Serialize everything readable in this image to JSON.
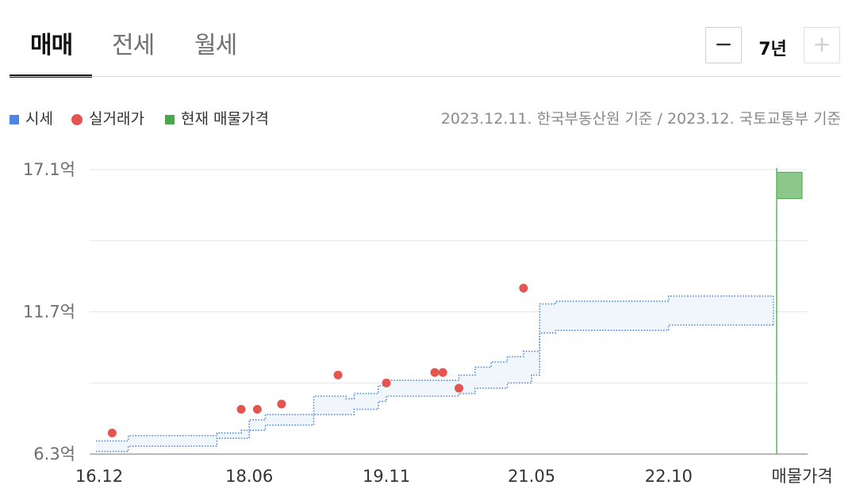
{
  "tabs": [
    {
      "label": "매매",
      "active": true
    },
    {
      "label": "전세",
      "active": false
    },
    {
      "label": "월세",
      "active": false
    }
  ],
  "period": {
    "minus": "−",
    "value": "7년",
    "plus": "+"
  },
  "legend": {
    "items": [
      {
        "label": "시세",
        "color": "#4c86e0",
        "shape": "square"
      },
      {
        "label": "실거래가",
        "color": "#e5554f",
        "shape": "circle"
      },
      {
        "label": "현재 매물가격",
        "color": "#4aa84a",
        "shape": "square"
      }
    ],
    "source": "2023.12.11. 한국부동산원 기준 / 2023.12. 국토교통부 기준"
  },
  "chart_data": {
    "type": "line",
    "unit": "억",
    "ylim": [
      6.3,
      17.1
    ],
    "y_ticks": [
      {
        "value": 17.1,
        "label": "17.1억"
      },
      {
        "value": 11.7,
        "label": "11.7억"
      },
      {
        "value": 6.3,
        "label": "6.3억"
      }
    ],
    "x_ticks": [
      "16.12",
      "18.06",
      "19.11",
      "21.05",
      "22.10",
      "매물가격"
    ],
    "market_price_band": {
      "name": "시세",
      "color": "#4c86e0",
      "upper": [
        {
          "x": "2016-11",
          "y": 6.8
        },
        {
          "x": "2017-02",
          "y": 6.8
        },
        {
          "x": "2017-03",
          "y": 7.0
        },
        {
          "x": "2018-01",
          "y": 7.0
        },
        {
          "x": "2018-02",
          "y": 7.1
        },
        {
          "x": "2018-05",
          "y": 7.2
        },
        {
          "x": "2018-06",
          "y": 7.6
        },
        {
          "x": "2018-08",
          "y": 7.8
        },
        {
          "x": "2019-01",
          "y": 7.8
        },
        {
          "x": "2019-02",
          "y": 8.5
        },
        {
          "x": "2019-06",
          "y": 8.4
        },
        {
          "x": "2019-07",
          "y": 8.6
        },
        {
          "x": "2019-10",
          "y": 8.9
        },
        {
          "x": "2019-11",
          "y": 9.1
        },
        {
          "x": "2020-07",
          "y": 9.1
        },
        {
          "x": "2020-08",
          "y": 9.3
        },
        {
          "x": "2020-10",
          "y": 9.6
        },
        {
          "x": "2020-12",
          "y": 9.8
        },
        {
          "x": "2021-02",
          "y": 10.0
        },
        {
          "x": "2021-04",
          "y": 10.2
        },
        {
          "x": "2021-05",
          "y": 10.2
        },
        {
          "x": "2021-06",
          "y": 12.0
        },
        {
          "x": "2021-08",
          "y": 12.1
        },
        {
          "x": "2022-09",
          "y": 12.1
        },
        {
          "x": "2022-10",
          "y": 12.3
        },
        {
          "x": "2023-11",
          "y": 12.3
        }
      ],
      "lower": [
        {
          "x": "2016-11",
          "y": 6.4
        },
        {
          "x": "2017-02",
          "y": 6.4
        },
        {
          "x": "2017-03",
          "y": 6.6
        },
        {
          "x": "2018-01",
          "y": 6.6
        },
        {
          "x": "2018-02",
          "y": 6.9
        },
        {
          "x": "2018-05",
          "y": 6.9
        },
        {
          "x": "2018-06",
          "y": 7.2
        },
        {
          "x": "2018-08",
          "y": 7.4
        },
        {
          "x": "2019-01",
          "y": 7.4
        },
        {
          "x": "2019-02",
          "y": 7.8
        },
        {
          "x": "2019-06",
          "y": 7.8
        },
        {
          "x": "2019-07",
          "y": 8.0
        },
        {
          "x": "2019-10",
          "y": 8.3
        },
        {
          "x": "2019-11",
          "y": 8.5
        },
        {
          "x": "2020-07",
          "y": 8.5
        },
        {
          "x": "2020-08",
          "y": 8.6
        },
        {
          "x": "2020-10",
          "y": 8.8
        },
        {
          "x": "2020-12",
          "y": 8.8
        },
        {
          "x": "2021-02",
          "y": 9.0
        },
        {
          "x": "2021-04",
          "y": 9.0
        },
        {
          "x": "2021-05",
          "y": 9.3
        },
        {
          "x": "2021-06",
          "y": 10.9
        },
        {
          "x": "2021-08",
          "y": 11.0
        },
        {
          "x": "2022-09",
          "y": 11.0
        },
        {
          "x": "2022-10",
          "y": 11.2
        },
        {
          "x": "2023-11",
          "y": 11.2
        }
      ]
    },
    "transactions": {
      "name": "실거래가",
      "color": "#e5554f",
      "points": [
        {
          "x": "2017-01",
          "y": 7.1
        },
        {
          "x": "2018-05",
          "y": 8.0
        },
        {
          "x": "2018-07",
          "y": 8.0
        },
        {
          "x": "2018-10",
          "y": 8.2
        },
        {
          "x": "2019-05",
          "y": 9.3
        },
        {
          "x": "2019-11",
          "y": 9.0
        },
        {
          "x": "2020-05",
          "y": 9.4
        },
        {
          "x": "2020-06",
          "y": 9.4
        },
        {
          "x": "2020-08",
          "y": 8.8
        },
        {
          "x": "2021-04",
          "y": 12.6
        }
      ]
    },
    "current_listing": {
      "name": "현재 매물가격",
      "color": "#4aa84a",
      "low": 16.0,
      "high": 17.0
    }
  }
}
